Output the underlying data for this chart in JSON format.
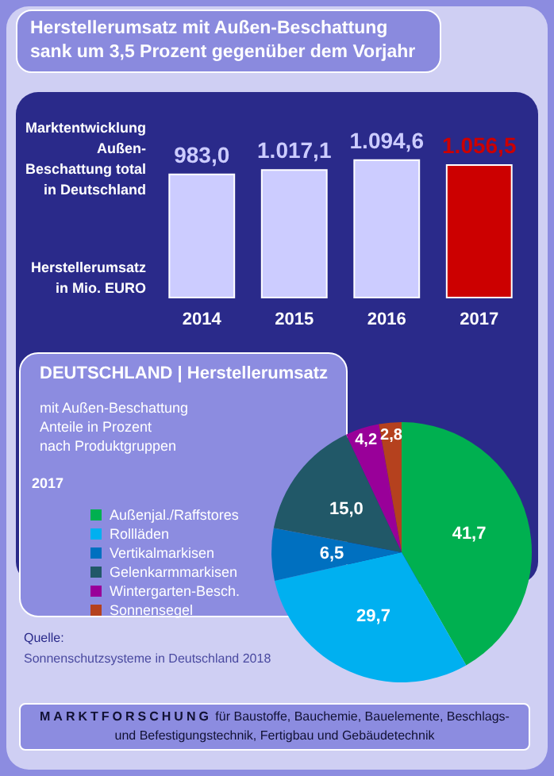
{
  "chart_data": [
    {
      "type": "bar",
      "title": "Herstellerumsatz mit  Außen-Beschattung sank um 3,5 Prozent gegenüber dem Vorjahr",
      "categories": [
        "2014",
        "2015",
        "2016",
        "2017"
      ],
      "values": [
        983.0,
        1017.1,
        1094.6,
        1056.5
      ],
      "value_labels": [
        "983,0",
        "1.017,1",
        "1.094,6",
        "1.056,5"
      ],
      "colors": [
        "#ccccff",
        "#ccccff",
        "#ccccff",
        "#cc0000"
      ],
      "annotations": [
        "Marktentwicklung\nAußen-\nBeschattung total\nin Deutschland",
        "Herstellerumsatz\nin Mio. EURO"
      ],
      "grid": false,
      "legend": false
    },
    {
      "type": "pie",
      "title": "DEUTSCHLAND | Herstellerumsatz",
      "subtitle": "mit Außen-Beschattung\nAnteile in Prozent\nnach Produktgruppen",
      "categories": [
        "Außenjal./Raffstores",
        "Rollläden",
        "Vertikalmarkisen",
        "Gelenkarmmarkisen",
        "Wintergarten-Besch.",
        "Sonnensegel"
      ],
      "values": [
        41.7,
        29.7,
        6.5,
        15.0,
        4.2,
        2.8
      ],
      "value_labels": [
        "41,7",
        "29,7",
        "6,5",
        "15,0",
        "4,2",
        "2,8"
      ],
      "colors": [
        "#00b050",
        "#00b0f0",
        "#0070c0",
        "#215868",
        "#990099",
        "#b5411e"
      ],
      "annotations": [
        "2017",
        "Quelle:",
        "Sonnenschutzsysteme in Deutschland 2018",
        "MARKTFORSCHUNG für Baustoffe, Bauchemie, Bauelemente, Beschlags- und Befestigungstechnik, Fertigbau und Gebäudetechnik"
      ],
      "legend": "left"
    }
  ]
}
